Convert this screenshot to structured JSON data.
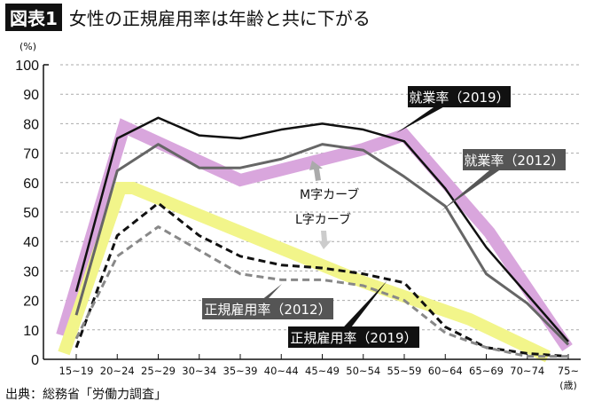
{
  "title_tag": "図表1",
  "title": "女性の正規雇用率は年齢と共に下がる",
  "source": "出典：総務省「労働力調査」",
  "annotations": {
    "m_curve": "M字カーブ",
    "l_curve": "L字カーブ"
  },
  "colors": {
    "m_band": "#d9a6dd",
    "l_band": "#f2f58a",
    "emp2019": "#111111",
    "emp2012": "#666666",
    "reg2019": "#111111",
    "reg2012": "#888888"
  },
  "chart_data": {
    "type": "line",
    "ylabel": "(%)",
    "xunit": "(歳)",
    "ylim": [
      0,
      100
    ],
    "yticks": [
      0,
      10,
      20,
      30,
      40,
      50,
      60,
      70,
      80,
      90,
      100
    ],
    "grid": true,
    "categories": [
      "15~19",
      "20~24",
      "25~29",
      "30~34",
      "35~39",
      "40~44",
      "45~49",
      "50~54",
      "55~59",
      "60~64",
      "65~69",
      "70~74",
      "75~"
    ],
    "series": [
      {
        "name": "就業率（2019）",
        "style": "solid",
        "values": [
          23,
          75,
          82,
          76,
          75,
          78,
          80,
          78,
          74,
          58,
          38,
          22,
          6
        ]
      },
      {
        "name": "就業率（2012）",
        "style": "solid",
        "values": [
          15,
          64,
          73,
          65,
          65,
          68,
          73,
          71,
          62,
          52,
          29,
          19,
          5
        ]
      },
      {
        "name": "正規雇用率（2019）",
        "style": "dashed",
        "values": [
          4,
          42,
          53,
          42,
          35,
          32,
          31,
          29,
          26,
          11,
          4,
          2,
          1
        ]
      },
      {
        "name": "正規雇用率（2012）",
        "style": "dashed",
        "values": [
          7,
          35,
          45,
          37,
          29,
          27,
          27,
          25,
          20,
          9,
          4,
          1,
          1
        ]
      }
    ]
  }
}
